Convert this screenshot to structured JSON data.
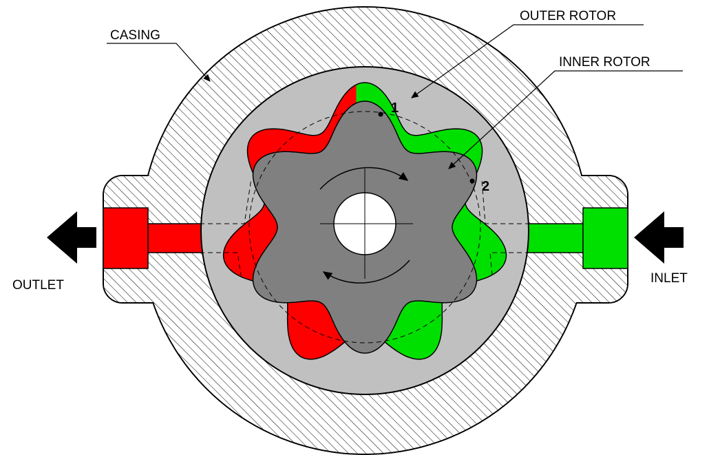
{
  "labels": {
    "casing": "CASING",
    "outer_rotor": "OUTER ROTOR",
    "inner_rotor": "INNER ROTOR",
    "point_1": "1",
    "point_2": "2",
    "outlet": "OUTLET",
    "inlet": "INLET"
  }
}
